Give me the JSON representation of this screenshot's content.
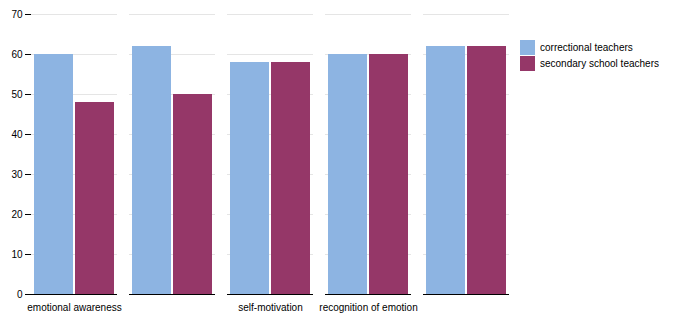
{
  "chart_data": {
    "type": "bar",
    "categories": [
      "emotional awareness",
      null,
      "self-motivation",
      "recognition of emotion",
      null
    ],
    "series": [
      {
        "name": "correctional teachers",
        "color": "#8db4e2",
        "values": [
          60,
          62,
          58,
          60,
          62
        ]
      },
      {
        "name": "secondary school teachers",
        "color": "#953768",
        "values": [
          48,
          50,
          58,
          60,
          62
        ]
      }
    ],
    "ylim": [
      0,
      70
    ],
    "yticks": [
      0,
      10,
      20,
      30,
      40,
      50,
      60,
      70
    ],
    "grid": true,
    "legend": "right"
  }
}
